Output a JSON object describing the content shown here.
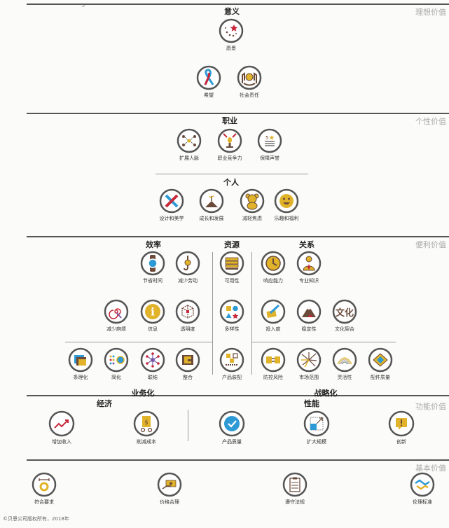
{
  "bands": {
    "ideal": "理想价值",
    "personal": "个性价值",
    "convenience": "便利价值",
    "function": "功能价值",
    "basic": "基本价值"
  },
  "headings": {
    "meaning": "意义",
    "career": "职业",
    "individual": "个人",
    "efficiency": "效率",
    "resources": "资源",
    "relationship": "关系",
    "business": "业务化",
    "strategic": "战略化",
    "economy": "经济",
    "performance": "性能"
  },
  "items": {
    "vision": "愿景",
    "hope": "希望",
    "social_resp": "社会责任",
    "network": "扩展人脉",
    "competitiveness": "职业竞争力",
    "reputation": "保障声誉",
    "design": "设计和美学",
    "growth": "成长和发展",
    "anxiety": "减轻焦虑",
    "fun": "乐趣和福利",
    "save_time": "节省时间",
    "reduce_effort": "减少劳动",
    "reduce_hassle": "减少麻烦",
    "info": "信息",
    "transparency": "透明度",
    "availability": "可用性",
    "variety": "多样性",
    "responsiveness": "响应能力",
    "expertise": "专业知识",
    "commitment": "投入度",
    "stability": "稳定性",
    "culture_fit": "文化契合",
    "culture_glyph": "文化",
    "organization": "条理化",
    "simplify": "简化",
    "connect": "联结",
    "integrate": "整合",
    "config": "产品装配",
    "risk": "防控风险",
    "market": "市场范围",
    "flexibility": "灵活性",
    "component_quality": "配件质量",
    "revenue": "增加收入",
    "cost": "削减成本",
    "quality": "产品质量",
    "scale": "扩大规模",
    "innovation": "创新",
    "spec": "符合要求",
    "price": "价格合理",
    "regulation": "遵守法规",
    "ethics": "伦理标准"
  },
  "copyright": "©贝恩公司版权所有，2018年",
  "colors": {
    "gold": "#e0b32a",
    "blue": "#2d9ad6",
    "brown": "#6b4a3a",
    "red": "#c8283a",
    "purple": "#7a5aa8",
    "ring": "#555"
  }
}
